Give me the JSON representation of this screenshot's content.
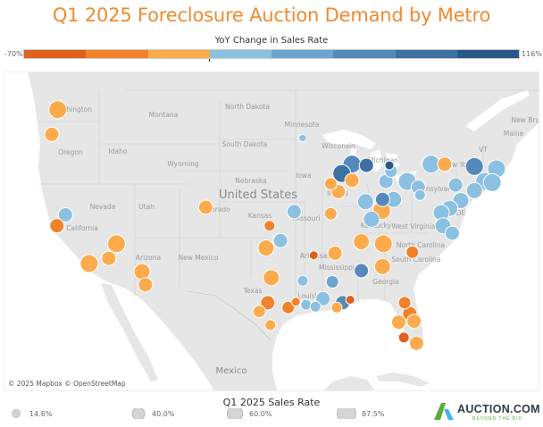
{
  "title": "Q1 2025 Foreclosure Auction Demand by Metro",
  "color_legend": {
    "title": "YoY Change in Sales Rate",
    "min_label": "-70%",
    "max_label": "116%",
    "min": -70,
    "max": 116,
    "bins": [
      "#e0611f",
      "#f2822a",
      "#fcab4c",
      "#8cc0e0",
      "#6ea4cf",
      "#5589bb",
      "#3e71a3",
      "#285888"
    ]
  },
  "map": {
    "attribution": "© 2025 Mapbox © OpenStreetMap",
    "labels": {
      "washington": "Washington",
      "oregon": "Oregon",
      "idaho": "Idaho",
      "montana": "Montana",
      "wyoming": "Wyoming",
      "nevada": "Nevada",
      "utah": "Utah",
      "california": "California",
      "colorado": "Colorado",
      "arizona": "Arizona",
      "new_mexico": "New Mexico",
      "north_dakota": "North Dakota",
      "south_dakota": "South Dakota",
      "nebraska": "Nebraska",
      "kansas": "Kansas",
      "minnesota": "Minnesota",
      "wisconsin": "Wisconsin",
      "iowa": "Iowa",
      "illinois": "Illinois",
      "missouri": "Missouri",
      "michigan": "Michigan",
      "kentucky": "Kentucky",
      "west_virginia": "West Virginia",
      "pennsylvania": "Pennsylvania",
      "new_york": "New York",
      "vt": "VT",
      "maine": "Maine",
      "new_brunswick": "New Brunswick",
      "de": "DE",
      "north_carolina": "North Carolina",
      "south_carolina": "South Carolina",
      "georgia": "Georgia",
      "mississippi": "Mississippi",
      "arkansas": "Arkansas",
      "louisiana": "Louisiana",
      "texas": "Texas",
      "united_states": "United States",
      "mexico": "Mexico"
    },
    "bubbles": [
      {
        "lon": -122.3,
        "lat": 47.7,
        "yoy": -12,
        "rate": 79
      },
      {
        "lon": -123.0,
        "lat": 45.7,
        "yoy": -12,
        "rate": 51
      },
      {
        "lon": -121.4,
        "lat": 38.7,
        "yoy": 12,
        "rate": 51
      },
      {
        "lon": -122.4,
        "lat": 37.7,
        "yoy": -35,
        "rate": 51
      },
      {
        "lon": -115.4,
        "lat": 36.0,
        "yoy": -12,
        "rate": 79
      },
      {
        "lon": -116.3,
        "lat": 34.6,
        "yoy": -12,
        "rate": 51
      },
      {
        "lon": -118.6,
        "lat": 34.1,
        "yoy": -12,
        "rate": 79
      },
      {
        "lon": -112.4,
        "lat": 33.3,
        "yoy": -12,
        "rate": 64
      },
      {
        "lon": -112.0,
        "lat": 32.0,
        "yoy": -12,
        "rate": 51
      },
      {
        "lon": -104.9,
        "lat": 39.4,
        "yoy": -12,
        "rate": 51
      },
      {
        "lon": -93.5,
        "lat": 45.4,
        "yoy": 12,
        "rate": 15
      },
      {
        "lon": -94.5,
        "lat": 39.0,
        "yoy": 12,
        "rate": 51
      },
      {
        "lon": -90.2,
        "lat": 38.8,
        "yoy": -12,
        "rate": 39
      },
      {
        "lon": -97.4,
        "lat": 37.7,
        "yoy": -35,
        "rate": 29
      },
      {
        "lon": -96.1,
        "lat": 36.3,
        "yoy": 12,
        "rate": 51
      },
      {
        "lon": -97.8,
        "lat": 35.6,
        "yoy": -12,
        "rate": 64
      },
      {
        "lon": -92.2,
        "lat": 34.9,
        "yoy": -58,
        "rate": 20
      },
      {
        "lon": -89.7,
        "lat": 35.1,
        "yoy": -12,
        "rate": 51
      },
      {
        "lon": -86.6,
        "lat": 36.2,
        "yoy": -12,
        "rate": 64
      },
      {
        "lon": -84.0,
        "lat": 36.0,
        "yoy": -12,
        "rate": 79
      },
      {
        "lon": -80.6,
        "lat": 35.2,
        "yoy": -35,
        "rate": 39
      },
      {
        "lon": -84.1,
        "lat": 33.8,
        "yoy": -12,
        "rate": 64
      },
      {
        "lon": -86.6,
        "lat": 33.4,
        "yoy": 58,
        "rate": 51
      },
      {
        "lon": -90.0,
        "lat": 32.3,
        "yoy": 35,
        "rate": 39
      },
      {
        "lon": -93.5,
        "lat": 32.4,
        "yoy": 12,
        "rate": 29
      },
      {
        "lon": -97.2,
        "lat": 32.7,
        "yoy": -12,
        "rate": 64
      },
      {
        "lon": -97.6,
        "lat": 30.2,
        "yoy": -35,
        "rate": 51
      },
      {
        "lon": -98.6,
        "lat": 29.3,
        "yoy": -12,
        "rate": 39
      },
      {
        "lon": -97.3,
        "lat": 27.9,
        "yoy": -12,
        "rate": 29
      },
      {
        "lon": -95.2,
        "lat": 29.7,
        "yoy": -35,
        "rate": 39
      },
      {
        "lon": -94.3,
        "lat": 30.3,
        "yoy": -35,
        "rate": 20
      },
      {
        "lon": -93.1,
        "lat": 30.0,
        "yoy": 12,
        "rate": 29
      },
      {
        "lon": -92.0,
        "lat": 29.8,
        "yoy": 12,
        "rate": 29
      },
      {
        "lon": -91.1,
        "lat": 30.6,
        "yoy": 12,
        "rate": 51
      },
      {
        "lon": -89.5,
        "lat": 29.7,
        "yoy": -12,
        "rate": 29
      },
      {
        "lon": -88.8,
        "lat": 30.2,
        "yoy": 58,
        "rate": 51
      },
      {
        "lon": -87.9,
        "lat": 30.5,
        "yoy": -58,
        "rate": 20
      },
      {
        "lon": -81.5,
        "lat": 30.2,
        "yoy": -35,
        "rate": 39
      },
      {
        "lon": -80.9,
        "lat": 29.1,
        "yoy": -35,
        "rate": 51
      },
      {
        "lon": -82.2,
        "lat": 28.2,
        "yoy": -12,
        "rate": 51
      },
      {
        "lon": -80.4,
        "lat": 28.3,
        "yoy": -12,
        "rate": 51
      },
      {
        "lon": -81.6,
        "lat": 26.6,
        "yoy": -58,
        "rate": 29
      },
      {
        "lon": -80.1,
        "lat": 26.0,
        "yoy": -12,
        "rate": 51
      },
      {
        "lon": -87.7,
        "lat": 43.2,
        "yoy": 58,
        "rate": 79
      },
      {
        "lon": -86.0,
        "lat": 43.1,
        "yoy": 81,
        "rate": 51
      },
      {
        "lon": -88.9,
        "lat": 42.4,
        "yoy": 81,
        "rate": 79
      },
      {
        "lon": -87.7,
        "lat": 41.8,
        "yoy": -12,
        "rate": 51
      },
      {
        "lon": -90.2,
        "lat": 41.5,
        "yoy": -12,
        "rate": 39
      },
      {
        "lon": -89.3,
        "lat": 40.8,
        "yoy": -12,
        "rate": 51
      },
      {
        "lon": -83.3,
        "lat": 43.1,
        "yoy": 105,
        "rate": 20
      },
      {
        "lon": -83.1,
        "lat": 42.6,
        "yoy": 12,
        "rate": 39
      },
      {
        "lon": -83.7,
        "lat": 41.7,
        "yoy": 12,
        "rate": 51
      },
      {
        "lon": -81.2,
        "lat": 41.7,
        "yoy": 12,
        "rate": 79
      },
      {
        "lon": -79.9,
        "lat": 41.2,
        "yoy": 12,
        "rate": 51
      },
      {
        "lon": -79.7,
        "lat": 40.5,
        "yoy": 12,
        "rate": 29
      },
      {
        "lon": -82.8,
        "lat": 40.1,
        "yoy": 12,
        "rate": 64
      },
      {
        "lon": -84.1,
        "lat": 40.1,
        "yoy": 58,
        "rate": 51
      },
      {
        "lon": -86.1,
        "lat": 39.9,
        "yoy": 12,
        "rate": 64
      },
      {
        "lon": -84.2,
        "lat": 39.1,
        "yoy": -12,
        "rate": 79
      },
      {
        "lon": -85.4,
        "lat": 38.3,
        "yoy": 12,
        "rate": 64
      },
      {
        "lon": -78.4,
        "lat": 43.2,
        "yoy": 12,
        "rate": 79
      },
      {
        "lon": -76.8,
        "lat": 43.2,
        "yoy": -12,
        "rate": 51
      },
      {
        "lon": -73.3,
        "lat": 43.0,
        "yoy": 58,
        "rate": 79
      },
      {
        "lon": -70.7,
        "lat": 42.8,
        "yoy": 12,
        "rate": 79
      },
      {
        "lon": -72.1,
        "lat": 41.7,
        "yoy": 12,
        "rate": 79
      },
      {
        "lon": -71.2,
        "lat": 41.6,
        "yoy": 12,
        "rate": 79
      },
      {
        "lon": -73.3,
        "lat": 40.9,
        "yoy": 12,
        "rate": 64
      },
      {
        "lon": -75.5,
        "lat": 41.4,
        "yoy": 12,
        "rate": 51
      },
      {
        "lon": -74.9,
        "lat": 40.0,
        "yoy": 12,
        "rate": 64
      },
      {
        "lon": -76.2,
        "lat": 39.3,
        "yoy": 12,
        "rate": 64
      },
      {
        "lon": -77.2,
        "lat": 38.9,
        "yoy": 12,
        "rate": 64
      },
      {
        "lon": -77.0,
        "lat": 37.7,
        "yoy": 12,
        "rate": 64
      },
      {
        "lon": -75.9,
        "lat": 37.0,
        "yoy": 12,
        "rate": 51
      }
    ]
  },
  "size_legend": {
    "title": "Q1 2025 Sales Rate",
    "items": [
      {
        "label": "14.6%",
        "value": 14.6
      },
      {
        "label": "40.0%",
        "value": 40.0
      },
      {
        "label": "60.0%",
        "value": 60.0
      },
      {
        "label": "87.5%",
        "value": 87.5
      }
    ]
  },
  "logo": {
    "name": "AUCTION.COM",
    "tagline": "BEYOND THE BID.",
    "green": "#5aaa3c",
    "blue": "#4ab3e6"
  }
}
